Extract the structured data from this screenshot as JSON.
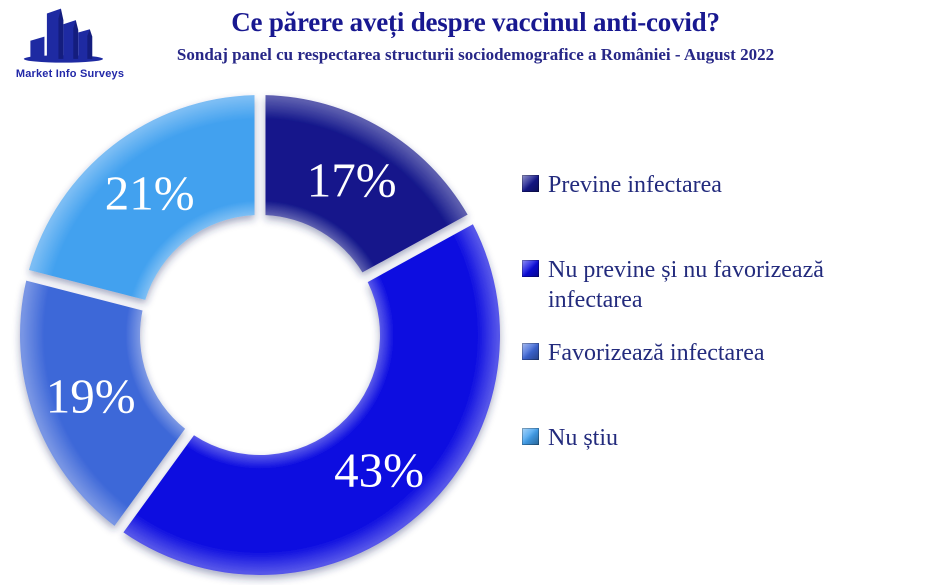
{
  "logo": {
    "text": "Market Info Surveys",
    "color": "#2228a8"
  },
  "header": {
    "title": "Ce părere aveți despre vaccinul anti-covid?",
    "subtitle": "Sondaj panel cu respectarea structurii sociodemografice a României - August 2022",
    "title_color": "#181890"
  },
  "chart_data": {
    "type": "pie",
    "variant": "donut",
    "title": "Ce părere aveți despre vaccinul anti-covid?",
    "subtitle": "Sondaj panel cu respectarea structurii sociodemografice a României - August 2022",
    "legend_position": "right",
    "start_angle_deg": 0,
    "direction": "clockwise",
    "inner_radius_ratio": 0.5,
    "value_label_color": "#ffffff",
    "slices": [
      {
        "label": "Previne infectarea",
        "value": 17,
        "display": "17%",
        "color": "#14178b"
      },
      {
        "label": "Nu previne și nu favorizează infectarea",
        "value": 43,
        "display": "43%",
        "color": "#0b0be0"
      },
      {
        "label": "Favorizează infectarea",
        "value": 19,
        "display": "19%",
        "color": "#3e68d8"
      },
      {
        "label": "Nu știu",
        "value": 21,
        "display": "21%",
        "color": "#42a1ef"
      }
    ]
  }
}
